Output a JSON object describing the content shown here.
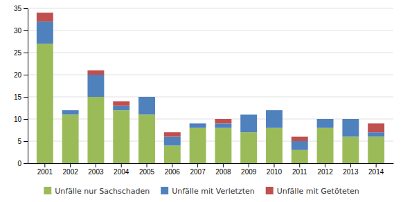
{
  "chart_data": {
    "type": "bar",
    "stacked": true,
    "categories": [
      "2001",
      "2002",
      "2003",
      "2004",
      "2005",
      "2006",
      "2007",
      "2008",
      "2009",
      "2010",
      "2011",
      "2012",
      "2013",
      "2014"
    ],
    "series": [
      {
        "name": "Unfälle nur Sachschaden",
        "color": "#9BBB59",
        "values": [
          27,
          11,
          15,
          12,
          11,
          4,
          8,
          8,
          7,
          8,
          3,
          8,
          6,
          6
        ]
      },
      {
        "name": "Unfälle mit Verletzten",
        "color": "#4F81BD",
        "values": [
          5,
          1,
          5,
          1,
          4,
          2,
          1,
          1,
          4,
          4,
          2,
          2,
          4,
          1
        ]
      },
      {
        "name": "Unfälle mit Getöteten",
        "color": "#C0504D",
        "values": [
          2,
          0,
          1,
          1,
          0,
          1,
          0,
          1,
          0,
          0,
          1,
          0,
          0,
          2
        ]
      }
    ],
    "ylim": [
      0,
      35
    ],
    "yticks": [
      0,
      5,
      10,
      15,
      20,
      25,
      30,
      35
    ],
    "grid": true,
    "legend": "bottom"
  }
}
